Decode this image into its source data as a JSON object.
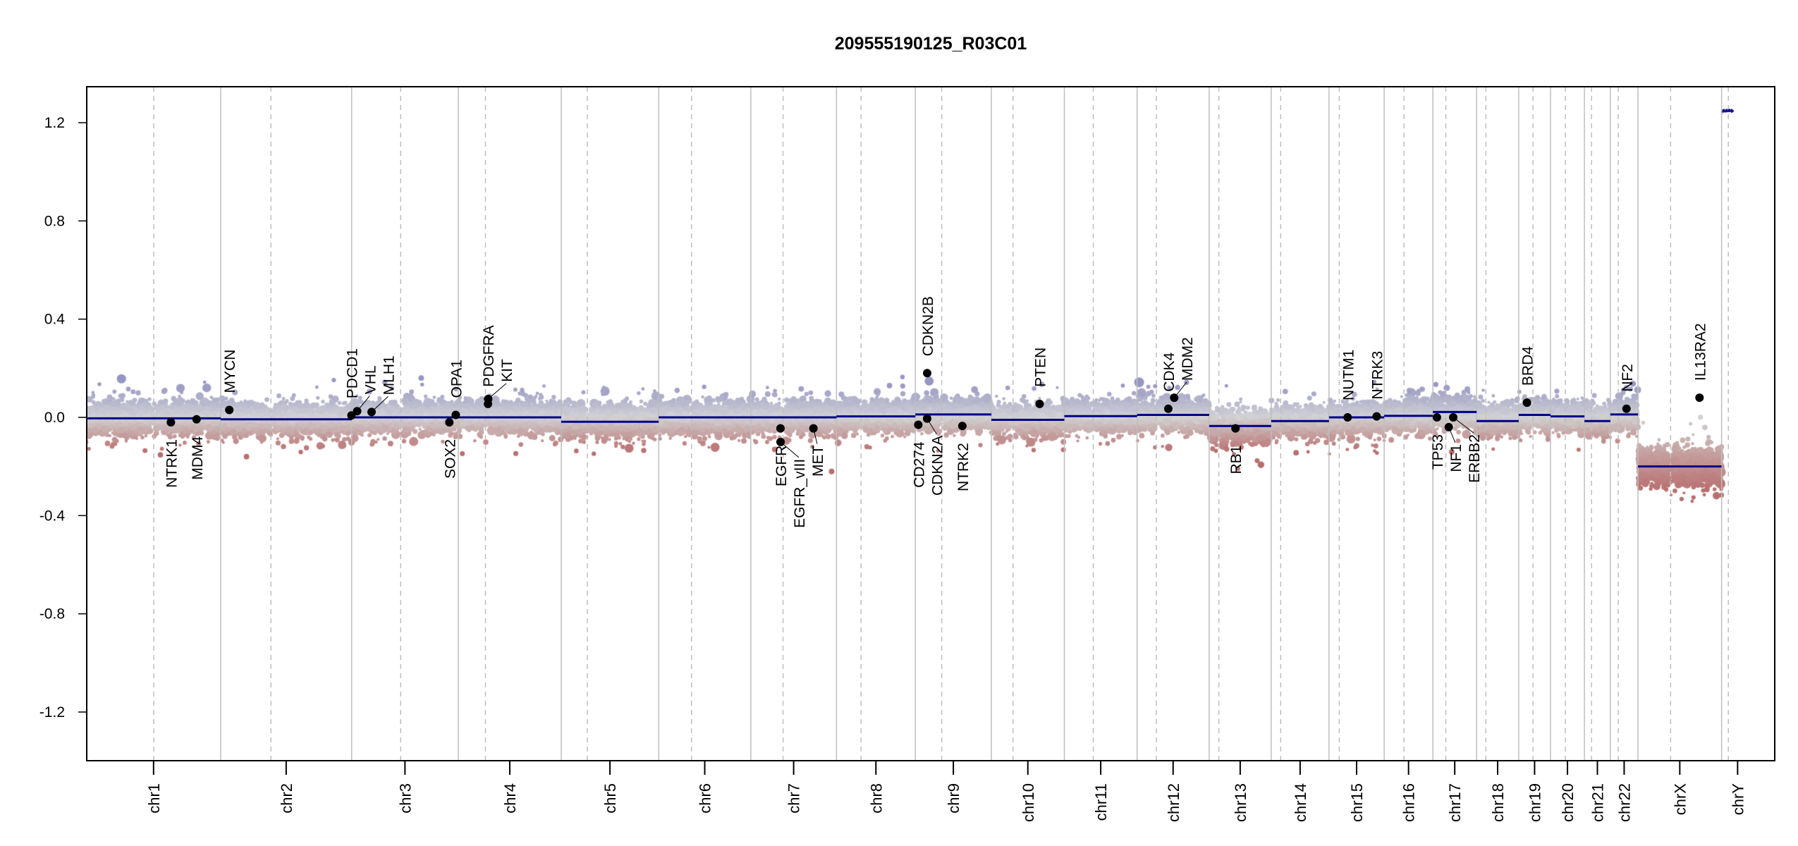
{
  "chart_data": {
    "type": "scatter",
    "title": "209555190125_R03C01",
    "xlabel": "",
    "ylabel": "",
    "ylim": [
      -1.4,
      1.35
    ],
    "yticks": [
      1.2,
      0.8,
      0.4,
      0.0,
      -0.4,
      -0.8,
      -1.2
    ],
    "ytick_labels": [
      "1.2",
      "0.8",
      "0.4",
      "0.0",
      "-0.4",
      "-0.8",
      "-1.2"
    ],
    "grid": false,
    "chromosomes": [
      {
        "name": "chr1",
        "length": 249.25,
        "centromere": 125.0,
        "segment": -0.004
      },
      {
        "name": "chr2",
        "length": 243.2,
        "centromere": 93.3,
        "segment": -0.008
      },
      {
        "name": "chr3",
        "length": 198.0,
        "centromere": 91.0,
        "segment": 0.0
      },
      {
        "name": "chr4",
        "length": 191.15,
        "centromere": 50.4,
        "segment": 0.0
      },
      {
        "name": "chr5",
        "length": 180.9,
        "centromere": 48.4,
        "segment": -0.018
      },
      {
        "name": "chr6",
        "length": 171.1,
        "centromere": 61.0,
        "segment": 0.0
      },
      {
        "name": "chr7",
        "length": 159.1,
        "centromere": 59.9,
        "segment": 0.0
      },
      {
        "name": "chr8",
        "length": 146.4,
        "centromere": 45.6,
        "segment": 0.004
      },
      {
        "name": "chr9",
        "length": 141.2,
        "centromere": 49.0,
        "segment": 0.012
      },
      {
        "name": "chr10",
        "length": 135.5,
        "centromere": 40.2,
        "segment": -0.01
      },
      {
        "name": "chr11",
        "length": 135.0,
        "centromere": 53.7,
        "segment": 0.005
      },
      {
        "name": "chr12",
        "length": 133.9,
        "centromere": 35.8,
        "segment": 0.01
      },
      {
        "name": "chr13",
        "length": 115.2,
        "centromere": 17.9,
        "segment": -0.035
      },
      {
        "name": "chr14",
        "length": 107.3,
        "centromere": 17.6,
        "segment": -0.015
      },
      {
        "name": "chr15",
        "length": 102.5,
        "centromere": 19.0,
        "segment": 0.0
      },
      {
        "name": "chr16",
        "length": 90.4,
        "centromere": 36.6,
        "segment": 0.006
      },
      {
        "name": "chr17",
        "length": 81.2,
        "centromere": 24.0,
        "segment": 0.022
      },
      {
        "name": "chr18",
        "length": 78.1,
        "centromere": 17.2,
        "segment": -0.015
      },
      {
        "name": "chr19",
        "length": 59.1,
        "centromere": 26.5,
        "segment": 0.01
      },
      {
        "name": "chr20",
        "length": 63.0,
        "centromere": 27.5,
        "segment": 0.004
      },
      {
        "name": "chr21",
        "length": 48.1,
        "centromere": 13.2,
        "segment": -0.015
      },
      {
        "name": "chr22",
        "length": 51.3,
        "centromere": 14.7,
        "segment": 0.012
      },
      {
        "name": "chrX",
        "length": 155.3,
        "centromere": 60.6,
        "segment": -0.2
      },
      {
        "name": "chrY",
        "length": 59.4,
        "centromere": 12.5,
        "segment": 1.25
      }
    ],
    "genes": [
      {
        "name": "NTRK1",
        "chr": "chr1",
        "pos": 156.8,
        "value": -0.02,
        "label": "below"
      },
      {
        "name": "MDM4",
        "chr": "chr1",
        "pos": 204.5,
        "value": -0.008,
        "label": "below"
      },
      {
        "name": "MYCN",
        "chr": "chr2",
        "pos": 16.0,
        "value": 0.03,
        "label": "above"
      },
      {
        "name": "PDCD1",
        "chr": "chr2",
        "pos": 242.8,
        "value": 0.008,
        "label": "above"
      },
      {
        "name": "VHL",
        "chr": "chr3",
        "pos": 10.2,
        "value": 0.025,
        "label": "above"
      },
      {
        "name": "MLH1",
        "chr": "chr3",
        "pos": 37.0,
        "value": 0.022,
        "label": "above"
      },
      {
        "name": "SOX2",
        "chr": "chr3",
        "pos": 181.4,
        "value": -0.02,
        "label": "below"
      },
      {
        "name": "OPA1",
        "chr": "chr3",
        "pos": 193.3,
        "value": 0.01,
        "label": "above"
      },
      {
        "name": "PDGFRA",
        "chr": "chr4",
        "pos": 55.1,
        "value": 0.055,
        "label": "above"
      },
      {
        "name": "KIT",
        "chr": "chr4",
        "pos": 55.5,
        "value": 0.075,
        "label": "above"
      },
      {
        "name": "EGFR",
        "chr": "chr7",
        "pos": 55.1,
        "value": -0.045,
        "label": "below"
      },
      {
        "name": "EGFR_vIII",
        "chr": "chr7",
        "pos": 55.2,
        "value": -0.1,
        "label": "below"
      },
      {
        "name": "MET",
        "chr": "chr7",
        "pos": 116.3,
        "value": -0.045,
        "label": "below"
      },
      {
        "name": "CD274",
        "chr": "chr9",
        "pos": 5.5,
        "value": -0.03,
        "label": "below"
      },
      {
        "name": "CDKN2A",
        "chr": "chr9",
        "pos": 21.9,
        "value": -0.005,
        "label": "below"
      },
      {
        "name": "CDKN2B",
        "chr": "chr9",
        "pos": 22.0,
        "value": 0.18,
        "label": "above"
      },
      {
        "name": "NTRK2",
        "chr": "chr9",
        "pos": 87.3,
        "value": -0.035,
        "label": "below"
      },
      {
        "name": "PTEN",
        "chr": "chr10",
        "pos": 89.6,
        "value": 0.055,
        "label": "above"
      },
      {
        "name": "CDK4",
        "chr": "chr12",
        "pos": 58.0,
        "value": 0.035,
        "label": "above"
      },
      {
        "name": "MDM2",
        "chr": "chr12",
        "pos": 69.0,
        "value": 0.08,
        "label": "above"
      },
      {
        "name": "RB1",
        "chr": "chr13",
        "pos": 48.9,
        "value": -0.045,
        "label": "below"
      },
      {
        "name": "NUTM1",
        "chr": "chr15",
        "pos": 34.6,
        "value": 0.0,
        "label": "above"
      },
      {
        "name": "NTRK3",
        "chr": "chr15",
        "pos": 88.5,
        "value": 0.004,
        "label": "above"
      },
      {
        "name": "TP53",
        "chr": "chr17",
        "pos": 7.5,
        "value": 0.0,
        "label": "below"
      },
      {
        "name": "NF1",
        "chr": "chr17",
        "pos": 29.5,
        "value": -0.04,
        "label": "below"
      },
      {
        "name": "ERBB2",
        "chr": "chr17",
        "pos": 37.8,
        "value": 0.0,
        "label": "below"
      },
      {
        "name": "BRD4",
        "chr": "chr19",
        "pos": 15.4,
        "value": 0.06,
        "label": "above"
      },
      {
        "name": "NF2",
        "chr": "chr22",
        "pos": 30.0,
        "value": 0.035,
        "label": "above"
      },
      {
        "name": "IL13RA2",
        "chr": "chrX",
        "pos": 114.3,
        "value": 0.08,
        "label": "above"
      }
    ],
    "colors": {
      "segment": "#00008b",
      "gain": "#9d9dc4",
      "neutral": "#d0d0d0",
      "loss": "#b87878",
      "gene_point": "#000000",
      "boundary": "#bebebe"
    }
  }
}
